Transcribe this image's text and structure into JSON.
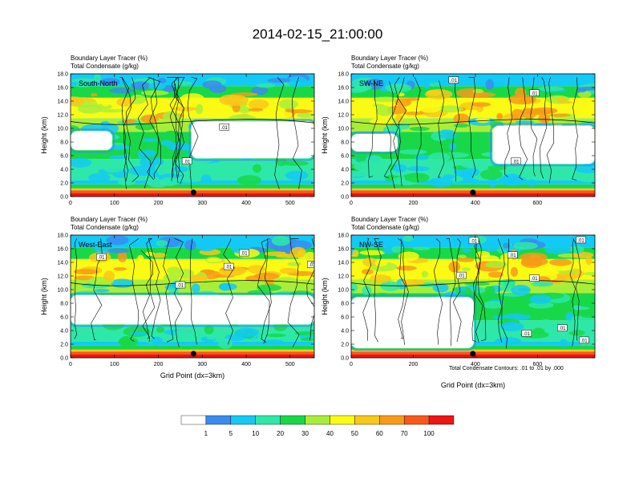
{
  "title": "2014-02-15_21:00:00",
  "contour_note": "Total Condensate Contours: .01 to .01 by .000",
  "colors": {
    "scale": [
      "#ffffff",
      "#3a8cf0",
      "#13c9f5",
      "#2ee8a8",
      "#18d848",
      "#a8ee38",
      "#fafa14",
      "#f8c818",
      "#f89a18",
      "#f85818",
      "#ee1414"
    ]
  },
  "chart_data": [
    {
      "type": "heatmap",
      "panel": "South-North",
      "label": "South-North",
      "subtitle_1": "Boundary Layer Tracer   (%)",
      "subtitle_2": "Total Condensate   (g/kg)",
      "ylabel": "Height (km)",
      "xlabel": "",
      "xlim": [
        0,
        555
      ],
      "ylim": [
        0,
        18
      ],
      "xticks": [
        0,
        100,
        200,
        300,
        400,
        500
      ],
      "yticks": [
        "0.0",
        "2.0",
        "4.0",
        "6.0",
        "8.0",
        "10.0",
        "12.0",
        "14.0",
        "16.0",
        "18.0"
      ],
      "marker_x": 280,
      "contour_labels": [
        {
          "text": ".01",
          "x": 350,
          "y": 10.2
        },
        {
          "text": ".01",
          "x": 265,
          "y": 5.2
        }
      ],
      "clear_regions": [
        {
          "x0": 275,
          "x1": 555,
          "y0": 5.6,
          "y1": 11.0
        },
        {
          "x0": 0,
          "x1": 95,
          "y0": 6.8,
          "y1": 9.6
        }
      ]
    },
    {
      "type": "heatmap",
      "panel": "SW-NE",
      "label": "SW-NE",
      "subtitle_1": "Boundary Layer Tracer   (%)",
      "subtitle_2": "Total Condensate   (g/kg)",
      "ylabel": "Height (km)",
      "xlabel": "",
      "xlim": [
        0,
        785
      ],
      "ylim": [
        0,
        18
      ],
      "xticks": [
        0,
        200,
        400,
        600
      ],
      "yticks": [
        "0.0",
        "2.0",
        "4.0",
        "6.0",
        "8.0",
        "10.0",
        "12.0",
        "14.0",
        "16.0",
        "18.0"
      ],
      "marker_x": 392,
      "contour_labels": [
        {
          "text": ".01",
          "x": 330,
          "y": 17.1
        },
        {
          "text": ".01",
          "x": 590,
          "y": 15.2
        },
        {
          "text": ".01",
          "x": 530,
          "y": 5.2
        }
      ],
      "clear_regions": [
        {
          "x0": 455,
          "x1": 785,
          "y0": 4.8,
          "y1": 10.4
        },
        {
          "x0": 0,
          "x1": 150,
          "y0": 6.6,
          "y1": 9.2
        }
      ]
    },
    {
      "type": "heatmap",
      "panel": "West-East",
      "label": "West-East",
      "subtitle_1": "Boundary Layer Tracer   (%)",
      "subtitle_2": "Total Condensate   (g/kg)",
      "ylabel": "Height (km)",
      "xlabel": "Grid Point (dx=3km)",
      "xlim": [
        0,
        555
      ],
      "ylim": [
        0,
        18
      ],
      "xticks": [
        0,
        100,
        200,
        300,
        400,
        500
      ],
      "yticks": [
        "0.0",
        "2.0",
        "4.0",
        "6.0",
        "8.0",
        "10.0",
        "12.0",
        "14.0",
        "16.0",
        "18.0"
      ],
      "marker_x": 280,
      "contour_labels": [
        {
          "text": ".01",
          "x": 70,
          "y": 14.8
        },
        {
          "text": ".01",
          "x": 395,
          "y": 15.4
        },
        {
          "text": ".01",
          "x": 360,
          "y": 13.4
        },
        {
          "text": ".01",
          "x": 250,
          "y": 10.7
        },
        {
          "text": ".01",
          "x": 550,
          "y": 13.7
        }
      ],
      "clear_regions": [
        {
          "x0": 0,
          "x1": 555,
          "y0": 4.9,
          "y1": 9.2
        }
      ]
    },
    {
      "type": "heatmap",
      "panel": "NW-SE",
      "label": "NW-SE",
      "subtitle_1": "Boundary Layer Tracer   (%)",
      "subtitle_2": "Total Condensate   (g/kg)",
      "ylabel": "Height (km)",
      "xlabel": "Grid Point (dx=3km)",
      "xlim": [
        0,
        785
      ],
      "ylim": [
        0,
        18
      ],
      "xticks": [
        0,
        200,
        400,
        600
      ],
      "yticks": [
        "0.0",
        "2.0",
        "4.0",
        "6.0",
        "8.0",
        "10.0",
        "12.0",
        "14.0",
        "16.0",
        "18.0"
      ],
      "marker_x": 392,
      "contour_labels": [
        {
          "text": ".01",
          "x": 395,
          "y": 17.2
        },
        {
          "text": ".01",
          "x": 520,
          "y": 15.1
        },
        {
          "text": ".01",
          "x": 355,
          "y": 12.1
        },
        {
          "text": ".01",
          "x": 590,
          "y": 11.7
        },
        {
          "text": ".01",
          "x": 565,
          "y": 3.6
        },
        {
          "text": ".01",
          "x": 680,
          "y": 4.4
        },
        {
          "text": ".01",
          "x": 750,
          "y": 2.6
        },
        {
          "text": ".01",
          "x": 740,
          "y": 17.3
        }
      ],
      "clear_regions": [
        {
          "x0": 0,
          "x1": 395,
          "y0": 1.4,
          "y1": 8.9
        }
      ]
    }
  ],
  "colorbar": {
    "labels": [
      "1",
      "5",
      "10",
      "20",
      "30",
      "40",
      "50",
      "60",
      "70",
      "100"
    ]
  }
}
